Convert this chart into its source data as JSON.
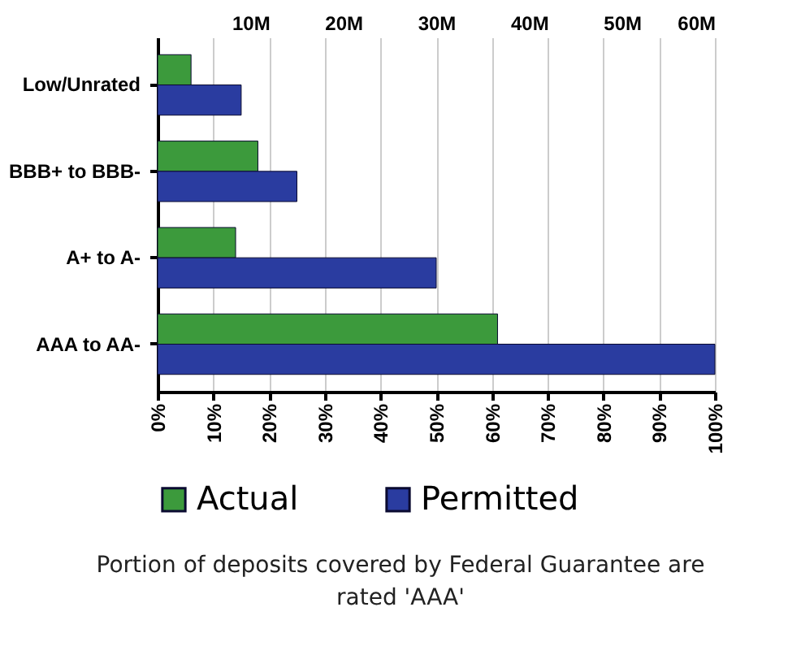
{
  "chart_data": {
    "type": "bar",
    "orientation": "horizontal",
    "categories": [
      "Low/Unrated",
      "BBB+ to BBB-",
      "A+ to A-",
      "AAA to AA-"
    ],
    "series": [
      {
        "name": "Actual",
        "color": "#3c9a3c",
        "values": [
          6,
          18,
          14,
          61
        ]
      },
      {
        "name": "Permitted",
        "color": "#2a3ca0",
        "values": [
          15,
          25,
          50,
          100
        ]
      }
    ],
    "xlim": [
      0,
      100
    ],
    "xticks": [
      {
        "value": 0,
        "label": "0%"
      },
      {
        "value": 10,
        "label": "10%"
      },
      {
        "value": 20,
        "label": "20%"
      },
      {
        "value": 30,
        "label": "30%"
      },
      {
        "value": 40,
        "label": "40%"
      },
      {
        "value": 50,
        "label": "50%"
      },
      {
        "value": 60,
        "label": "60%"
      },
      {
        "value": 70,
        "label": "70%"
      },
      {
        "value": 80,
        "label": "80%"
      },
      {
        "value": 90,
        "label": "90%"
      },
      {
        "value": 100,
        "label": "100%"
      }
    ],
    "x2lim": [
      0,
      60
    ],
    "x2ticks": [
      {
        "value": 10,
        "label": "10M"
      },
      {
        "value": 20,
        "label": "20M"
      },
      {
        "value": 30,
        "label": "30M"
      },
      {
        "value": 40,
        "label": "40M"
      },
      {
        "value": 50,
        "label": "50M"
      },
      {
        "value": 60,
        "label": "60M"
      }
    ],
    "grid": "x",
    "legend": "bottom",
    "annotations": [
      "Portion of deposits covered by Federal Guarantee are rated 'AAA'"
    ]
  }
}
